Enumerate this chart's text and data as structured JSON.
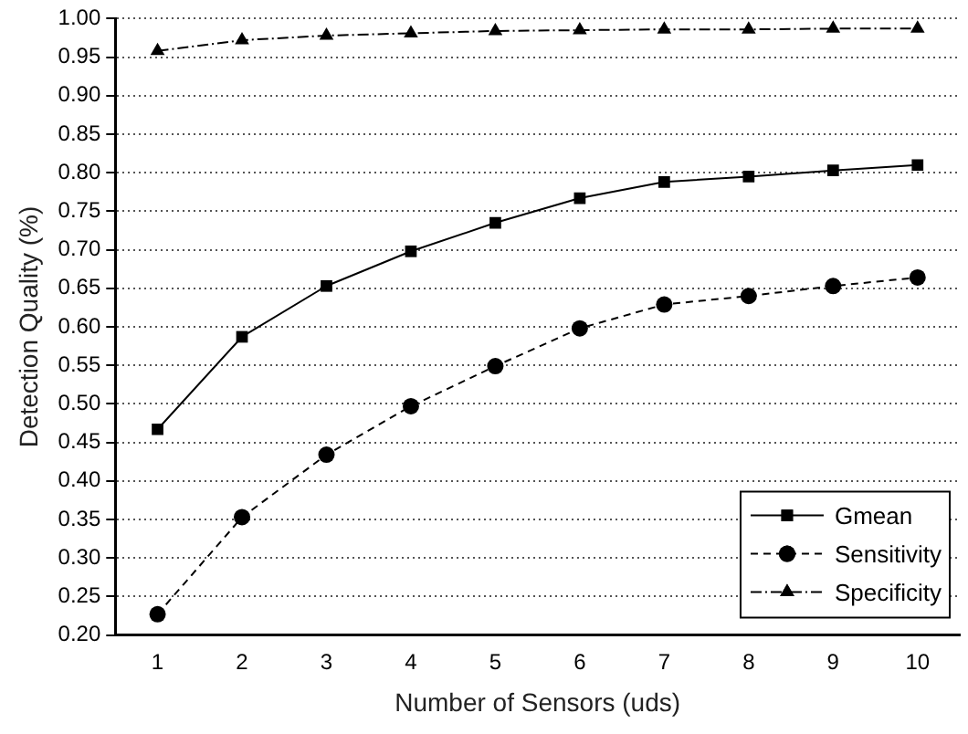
{
  "chart_data": {
    "type": "line",
    "xlabel": "Number of Sensors (uds)",
    "ylabel": "Detection Quality (%)",
    "x": [
      1,
      2,
      3,
      4,
      5,
      6,
      7,
      8,
      9,
      10
    ],
    "xlim": [
      0.5,
      10.5
    ],
    "xticks": [
      1,
      2,
      3,
      4,
      5,
      6,
      7,
      8,
      9,
      10
    ],
    "ylim": [
      0.2,
      1.0
    ],
    "yticks": [
      {
        "value": 0.2,
        "label": "0.20"
      },
      {
        "value": 0.25,
        "label": "0.25"
      },
      {
        "value": 0.3,
        "label": "0.30"
      },
      {
        "value": 0.35,
        "label": "0.35"
      },
      {
        "value": 0.4,
        "label": "0.40"
      },
      {
        "value": 0.45,
        "label": "0.45"
      },
      {
        "value": 0.5,
        "label": "0.50"
      },
      {
        "value": 0.55,
        "label": "0.55"
      },
      {
        "value": 0.6,
        "label": "0.60"
      },
      {
        "value": 0.65,
        "label": "0.65"
      },
      {
        "value": 0.7,
        "label": "0.70"
      },
      {
        "value": 0.75,
        "label": "0.75"
      },
      {
        "value": 0.8,
        "label": "0.80"
      },
      {
        "value": 0.85,
        "label": "0.85"
      },
      {
        "value": 0.9,
        "label": "0.90"
      },
      {
        "value": 0.95,
        "label": "0.95"
      },
      {
        "value": 1.0,
        "label": "1.00"
      }
    ],
    "grid": "y",
    "legend": "bottom right",
    "series": [
      {
        "name": "Gmean",
        "color": "#000000",
        "marker": "square",
        "line_style": "solid",
        "values": [
          0.467,
          0.587,
          0.653,
          0.698,
          0.735,
          0.767,
          0.788,
          0.795,
          0.803,
          0.81
        ]
      },
      {
        "name": "Sensitivity",
        "color": "#000000",
        "marker": "circle",
        "line_style": "dashed",
        "values": [
          0.227,
          0.353,
          0.434,
          0.497,
          0.549,
          0.598,
          0.629,
          0.64,
          0.653,
          0.664
        ]
      },
      {
        "name": "Specificity",
        "color": "#000000",
        "marker": "triangle",
        "line_style": "dashdot",
        "values": [
          0.958,
          0.972,
          0.978,
          0.981,
          0.984,
          0.985,
          0.986,
          0.986,
          0.987,
          0.987
        ]
      }
    ]
  }
}
